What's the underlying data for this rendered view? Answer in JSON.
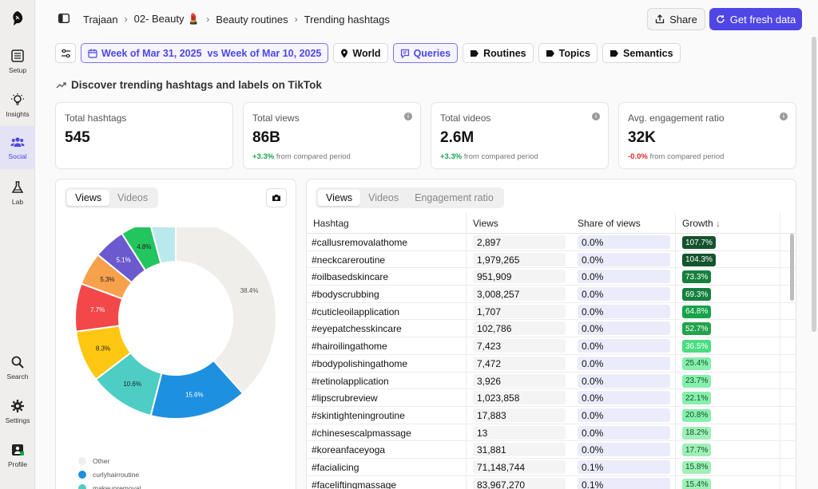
{
  "sidebar": {
    "items": [
      {
        "label": "Setup",
        "icon": "list-icon"
      },
      {
        "label": "Insights",
        "icon": "bulb-icon"
      },
      {
        "label": "Social",
        "icon": "people-icon"
      },
      {
        "label": "Lab",
        "icon": "flask-icon"
      },
      {
        "label": "Search",
        "icon": "search-icon"
      },
      {
        "label": "Settings",
        "icon": "gear-icon"
      },
      {
        "label": "Profile",
        "icon": "profile-icon"
      }
    ]
  },
  "breadcrumb": {
    "items": [
      "Trajaan",
      "02- Beauty 💄",
      "Beauty routines",
      "Trending hashtags"
    ]
  },
  "header": {
    "share_label": "Share",
    "fresh_label": "Get fresh data"
  },
  "filters": {
    "date_label": "Week of Mar 31, 2025  vs Week of Mar 10, 2025",
    "world_label": "World",
    "queries_label": "Queries",
    "routines_label": "Routines",
    "topics_label": "Topics",
    "semantics_label": "Semantics"
  },
  "section": {
    "title": "Discover trending hashtags and labels on TikTok"
  },
  "stats": [
    {
      "title": "Total hashtags",
      "value": "545",
      "delta": "",
      "note": ""
    },
    {
      "title": "Total views",
      "value": "86B",
      "delta": "+3.3%",
      "note": "from compared period"
    },
    {
      "title": "Total videos",
      "value": "2.6M",
      "delta": "+3.3%",
      "note": "from compared period"
    },
    {
      "title": "Avg. engagement ratio",
      "value": "32K",
      "delta": "-0.0%",
      "note": "from compared period"
    }
  ],
  "pie_panel": {
    "tabs": [
      "Views",
      "Videos"
    ],
    "active_tab": "Views"
  },
  "chart_data": {
    "type": "pie",
    "slices": [
      {
        "label": "Other",
        "value": 38.4,
        "color": "#efeeea"
      },
      {
        "label": "curlyhairroutine",
        "value": 15.6,
        "color": "#1e90e0"
      },
      {
        "label": "makeupremoval",
        "value": 10.6,
        "color": "#4ecdc4"
      },
      {
        "label": "",
        "value": 8.3,
        "color": "#fec711"
      },
      {
        "label": "",
        "value": 7.7,
        "color": "#f2484a"
      },
      {
        "label": "",
        "value": 5.3,
        "color": "#f7a14c"
      },
      {
        "label": "",
        "value": 5.1,
        "color": "#6a5acd"
      },
      {
        "label": "",
        "value": 4.8,
        "color": "#22c55e"
      },
      {
        "label": "",
        "value": 4.2,
        "color": "#b9e9ec"
      }
    ],
    "slice_labels": [
      "38.4%",
      "15.6%",
      "10.6%",
      "8.3%",
      "7.7%",
      "5.3%",
      "5.1%",
      "4.8%",
      ""
    ]
  },
  "table_panel": {
    "tabs": [
      "Views",
      "Videos",
      "Engagement ratio"
    ],
    "active_tab": "Views",
    "columns": [
      "Hashtag",
      "Views",
      "Share of views",
      "Growth"
    ],
    "rows": [
      {
        "hashtag": "#callusremovalathome",
        "views": "2,897",
        "share": "0.0%",
        "growth": "107.7%",
        "color": "#14532d"
      },
      {
        "hashtag": "#neckcareroutine",
        "views": "1,979,265",
        "share": "0.0%",
        "growth": "104.3%",
        "color": "#14532d"
      },
      {
        "hashtag": "#oilbasedskincare",
        "views": "951,909",
        "share": "0.0%",
        "growth": "73.3%",
        "color": "#15803d"
      },
      {
        "hashtag": "#bodyscrubbing",
        "views": "3,008,257",
        "share": "0.0%",
        "growth": "69.3%",
        "color": "#15803d"
      },
      {
        "hashtag": "#cuticleoilapplication",
        "views": "1,707",
        "share": "0.0%",
        "growth": "64.8%",
        "color": "#16a34a"
      },
      {
        "hashtag": "#eyepatchesskincare",
        "views": "102,786",
        "share": "0.0%",
        "growth": "52.7%",
        "color": "#22a34a"
      },
      {
        "hashtag": "#hairoilingathome",
        "views": "7,423",
        "share": "0.0%",
        "growth": "36.5%",
        "color": "#4ade80"
      },
      {
        "hashtag": "#bodypolishingathome",
        "views": "7,472",
        "share": "0.0%",
        "growth": "25.4%",
        "color": "#86efac"
      },
      {
        "hashtag": "#retinolapplication",
        "views": "3,926",
        "share": "0.0%",
        "growth": "23.7%",
        "color": "#86efac"
      },
      {
        "hashtag": "#lipscrubreview",
        "views": "1,023,858",
        "share": "0.0%",
        "growth": "22.1%",
        "color": "#86efac"
      },
      {
        "hashtag": "#skintighteningroutine",
        "views": "17,883",
        "share": "0.0%",
        "growth": "20.8%",
        "color": "#86efac"
      },
      {
        "hashtag": "#chinesescalpmassage",
        "views": "13",
        "share": "0.0%",
        "growth": "18.2%",
        "color": "#9ef0b6"
      },
      {
        "hashtag": "#koreanfaceyoga",
        "views": "31,881",
        "share": "0.0%",
        "growth": "17.7%",
        "color": "#9ef0b6"
      },
      {
        "hashtag": "#facialicing",
        "views": "71,148,744",
        "share": "0.1%",
        "growth": "15.8%",
        "color": "#9ef0b6"
      },
      {
        "hashtag": "#faceliftingmassage",
        "views": "83,967,270",
        "share": "0.1%",
        "growth": "15.4%",
        "color": "#9ef0b6"
      }
    ]
  }
}
